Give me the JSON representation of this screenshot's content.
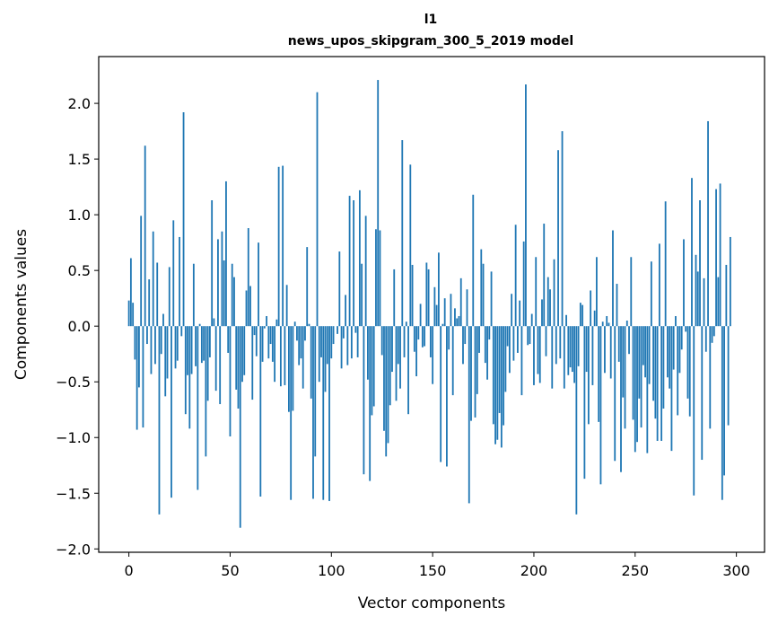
{
  "chart_data": {
    "type": "bar",
    "title": "l1",
    "subtitle": "news_upos_skipgram_300_5_2019 model",
    "xlabel": "Vector components",
    "ylabel": "Components values",
    "xlim": [
      -14.9,
      313.9
    ],
    "ylim": [
      -2.03,
      2.42
    ],
    "xticks": [
      0,
      50,
      100,
      150,
      200,
      250,
      300
    ],
    "xtick_labels": [
      "0",
      "50",
      "100",
      "150",
      "200",
      "250",
      "300"
    ],
    "yticks": [
      -2.0,
      -1.5,
      -1.0,
      -0.5,
      0.0,
      0.5,
      1.0,
      1.5,
      2.0
    ],
    "ytick_labels": [
      "−2.0",
      "−1.5",
      "−1.0",
      "−0.5",
      "0.0",
      "0.5",
      "1.0",
      "1.5",
      "2.0"
    ],
    "bar_color": "#1f77b4",
    "grid": false,
    "values": [
      0.23,
      0.61,
      0.21,
      -0.3,
      -0.93,
      -0.55,
      0.99,
      -0.91,
      1.62,
      -0.16,
      0.42,
      -0.43,
      0.85,
      -0.34,
      0.57,
      -1.69,
      -0.25,
      0.11,
      -0.63,
      -0.47,
      0.53,
      -1.54,
      0.95,
      -0.38,
      -0.31,
      0.8,
      -0.09,
      1.92,
      -0.79,
      -0.44,
      -0.92,
      -0.43,
      0.56,
      -0.36,
      -1.47,
      0.02,
      -0.33,
      -0.31,
      -1.17,
      -0.67,
      -0.28,
      1.13,
      0.07,
      -0.58,
      0.78,
      -0.7,
      0.85,
      0.59,
      1.3,
      -0.24,
      -0.99,
      0.56,
      0.44,
      -0.57,
      -0.74,
      -1.81,
      -0.5,
      -0.44,
      0.32,
      0.88,
      0.36,
      -0.66,
      -0.08,
      -0.27,
      0.75,
      -1.53,
      -0.32,
      -0.02,
      0.09,
      -0.29,
      -0.16,
      -0.32,
      -0.5,
      0.06,
      1.43,
      -0.54,
      1.44,
      -0.53,
      0.37,
      -0.77,
      -1.56,
      -0.76,
      0.04,
      -0.13,
      -0.35,
      -0.29,
      -0.56,
      -0.13,
      0.71,
      0.02,
      -0.65,
      -1.55,
      -1.17,
      2.1,
      -0.5,
      -0.28,
      -1.56,
      -0.59,
      -0.34,
      -1.57,
      -0.29,
      -0.16,
      0.0,
      -0.07,
      0.67,
      -0.38,
      -0.11,
      0.28,
      -0.35,
      1.17,
      -0.29,
      1.13,
      -0.06,
      -0.28,
      1.22,
      0.56,
      -1.33,
      0.99,
      -0.48,
      -1.39,
      -0.8,
      -0.72,
      0.87,
      2.21,
      0.86,
      -0.26,
      -0.94,
      -1.17,
      -1.05,
      -0.71,
      -0.41,
      0.51,
      -0.67,
      -0.34,
      -0.56,
      1.67,
      -0.28,
      0.04,
      -0.79,
      1.45,
      0.55,
      -0.23,
      -0.45,
      -0.12,
      0.2,
      -0.19,
      -0.18,
      0.57,
      0.51,
      -0.28,
      -0.52,
      0.35,
      0.19,
      0.66,
      -1.22,
      0.02,
      0.25,
      -1.26,
      -0.21,
      0.29,
      -0.62,
      0.16,
      0.07,
      0.09,
      0.43,
      -0.34,
      -0.16,
      0.33,
      -1.59,
      -0.85,
      1.18,
      -0.82,
      -0.61,
      -0.24,
      0.69,
      0.56,
      -0.33,
      -0.48,
      -0.12,
      0.49,
      -0.88,
      -1.06,
      -1.02,
      -0.78,
      -1.09,
      -0.89,
      -0.59,
      -0.18,
      -0.42,
      0.29,
      -0.31,
      0.91,
      -0.24,
      0.23,
      -0.62,
      0.76,
      2.17,
      -0.17,
      -0.16,
      0.11,
      -0.53,
      0.62,
      -0.43,
      -0.51,
      0.24,
      0.92,
      -0.27,
      0.44,
      0.33,
      -0.56,
      0.6,
      -0.34,
      1.58,
      -0.29,
      1.75,
      -0.56,
      0.1,
      -0.44,
      -0.37,
      -0.41,
      -0.51,
      -1.69,
      -0.36,
      0.21,
      0.19,
      -1.37,
      -0.41,
      -0.88,
      0.32,
      -0.53,
      0.14,
      0.62,
      -0.86,
      -1.42,
      0.04,
      -0.42,
      0.09,
      0.03,
      -0.47,
      0.86,
      -1.21,
      0.38,
      -0.32,
      -1.31,
      -0.64,
      -0.92,
      0.05,
      -0.25,
      0.62,
      -0.84,
      -1.13,
      -1.04,
      -0.65,
      -0.91,
      -0.35,
      -0.46,
      -1.14,
      -0.52,
      0.58,
      -0.67,
      -0.83,
      -1.03,
      0.74,
      -1.03,
      -0.74,
      1.12,
      -0.46,
      -0.56,
      -1.12,
      -0.39,
      0.09,
      -0.8,
      -0.42,
      -0.21,
      0.78,
      -0.05,
      -0.65,
      -0.81,
      1.33,
      -1.52,
      0.64,
      0.49,
      1.13,
      -1.2,
      0.43,
      -0.23,
      1.84,
      -0.92,
      -0.15,
      -0.09,
      1.23,
      0.44,
      1.28,
      -1.56,
      -1.34,
      0.55,
      -0.89,
      0.8
    ]
  }
}
